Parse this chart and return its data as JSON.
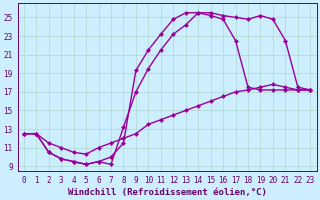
{
  "xlabel": "Windchill (Refroidissement éolien,°C)",
  "bg_color": "#cceeff",
  "line_color": "#990099",
  "grid_color": "#b0d8cc",
  "axis_color": "#660066",
  "ylim": [
    8.5,
    26.5
  ],
  "xlim": [
    -0.5,
    23.5
  ],
  "yticks": [
    9,
    11,
    13,
    15,
    17,
    19,
    21,
    23,
    25
  ],
  "xticks": [
    0,
    1,
    2,
    3,
    4,
    5,
    6,
    7,
    8,
    9,
    10,
    11,
    12,
    13,
    14,
    15,
    16,
    17,
    18,
    19,
    20,
    21,
    22,
    23
  ],
  "line1_x": [
    0,
    1,
    2,
    3,
    4,
    5,
    6,
    7,
    8,
    9,
    10,
    11,
    12,
    13,
    14,
    15,
    16,
    17,
    18,
    19,
    20,
    21,
    22,
    23
  ],
  "line1_y": [
    12.5,
    12.5,
    11.5,
    11.0,
    10.5,
    10.3,
    11.0,
    11.5,
    12.0,
    12.5,
    13.5,
    14.0,
    14.5,
    15.0,
    15.5,
    16.0,
    16.5,
    17.0,
    17.2,
    17.5,
    17.8,
    17.5,
    17.2,
    17.2
  ],
  "line2_x": [
    0,
    1,
    2,
    3,
    4,
    5,
    6,
    7,
    8,
    9,
    10,
    11,
    12,
    13,
    14,
    15,
    16,
    17,
    18,
    19,
    20,
    21,
    22,
    23
  ],
  "line2_y": [
    12.5,
    12.5,
    10.5,
    9.8,
    9.5,
    9.2,
    9.5,
    10.0,
    11.5,
    19.3,
    21.5,
    23.2,
    24.8,
    25.5,
    25.5,
    25.2,
    24.8,
    22.5,
    17.5,
    17.2,
    17.2,
    17.2,
    17.2,
    17.2
  ],
  "line3_x": [
    0,
    1,
    2,
    3,
    4,
    5,
    6,
    7,
    8,
    9,
    10,
    11,
    12,
    13,
    14,
    15,
    16,
    17,
    18,
    19,
    20,
    21,
    22,
    23
  ],
  "line3_y": [
    12.5,
    12.5,
    10.5,
    9.8,
    9.5,
    9.2,
    9.5,
    9.2,
    13.2,
    17.0,
    19.5,
    21.5,
    23.2,
    24.2,
    25.5,
    25.5,
    25.2,
    25.0,
    24.8,
    25.2,
    24.8,
    22.5,
    17.5,
    17.2
  ],
  "linewidth": 1.0,
  "markersize": 2.5,
  "tick_fontsize": 5.5,
  "xlabel_fontsize": 6.5
}
